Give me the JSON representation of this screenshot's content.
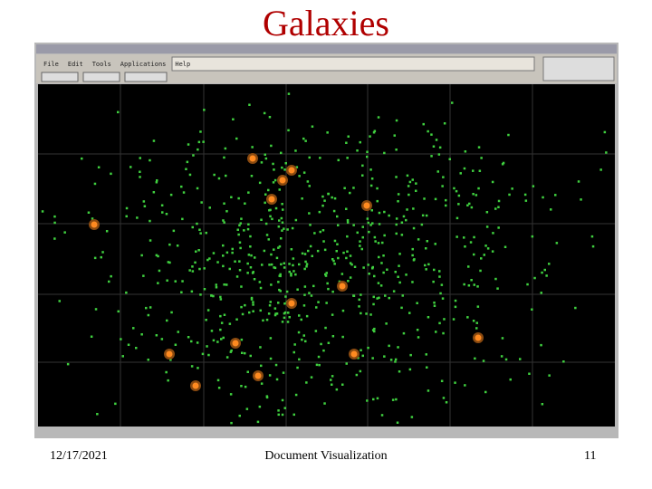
{
  "slide": {
    "title": "Galaxies",
    "date": "12/17/2021",
    "footer": "Document Visualization",
    "page": "11"
  },
  "window": {
    "menu": [
      "File",
      "Edit",
      "Tools",
      "Applications",
      "Help"
    ]
  }
}
